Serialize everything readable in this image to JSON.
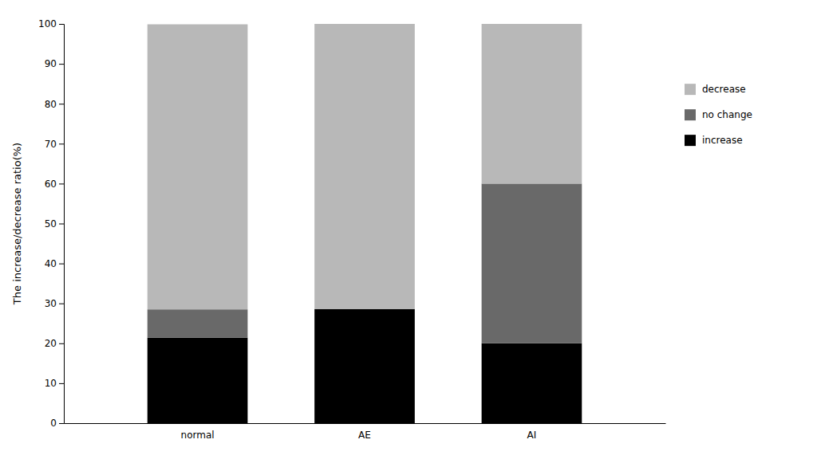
{
  "chart_data": {
    "type": "bar",
    "stacked": true,
    "categories": [
      "normal",
      "AE",
      "AI"
    ],
    "series": [
      {
        "name": "increase",
        "color": "#000000",
        "values": [
          21.4,
          28.6,
          20.0
        ]
      },
      {
        "name": "no change",
        "color": "#696969",
        "values": [
          7.1,
          0.0,
          40.0
        ]
      },
      {
        "name": "decrease",
        "color": "#b8b8b8",
        "values": [
          71.4,
          71.4,
          40.0
        ]
      }
    ],
    "y_label": "The increase/decrease ratio(%)",
    "ylim": [
      0,
      100
    ],
    "yticks": [
      0,
      10,
      20,
      30,
      40,
      50,
      60,
      70,
      80,
      90,
      100
    ],
    "grid": false,
    "legend": "right"
  }
}
